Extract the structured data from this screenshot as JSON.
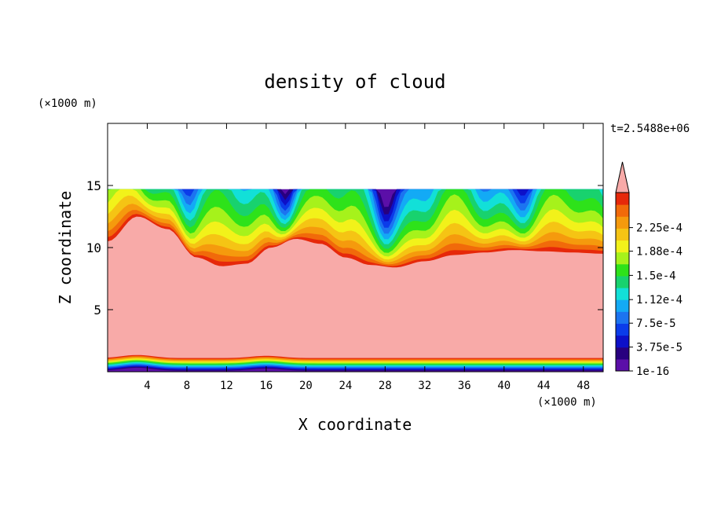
{
  "chart_data": {
    "type": "heatmap",
    "title": "density of cloud",
    "xlabel": "X coordinate",
    "ylabel": "Z coordinate",
    "x_unit_label": "(×1000 m)",
    "y_unit_label": "(×1000 m)",
    "time_label": "t=2.5488e+06",
    "xlim": [
      0,
      50
    ],
    "ylim": [
      0,
      20
    ],
    "x_ticks": [
      4,
      8,
      12,
      16,
      20,
      24,
      28,
      32,
      36,
      40,
      44,
      48
    ],
    "y_ticks": [
      5,
      10,
      15
    ],
    "x_tick_labels": [
      "4",
      "8",
      "12",
      "16",
      "20",
      "24",
      "28",
      "32",
      "36",
      "40",
      "44",
      "48"
    ],
    "y_tick_labels": [
      "5",
      "10",
      "15"
    ],
    "field_top_z": 14.7,
    "cloud_base_z": 1.1,
    "cloud_top_profile": {
      "x": [
        0,
        3,
        6,
        9,
        11.5,
        14,
        16.5,
        19,
        21.5,
        24,
        26.5,
        29,
        32,
        35,
        38,
        41,
        44,
        47,
        50
      ],
      "z": [
        10.5,
        12.5,
        11.5,
        9.2,
        8.5,
        8.7,
        10.0,
        10.7,
        10.3,
        9.2,
        8.6,
        8.4,
        8.9,
        9.4,
        9.6,
        9.8,
        9.7,
        9.6,
        9.5
      ]
    },
    "colorbar": {
      "colors": [
        "#5b0fa8",
        "#28007f",
        "#0d10c8",
        "#0b3cea",
        "#1c74f0",
        "#13aaf5",
        "#12e0d8",
        "#18d26e",
        "#2ee21a",
        "#a6f21b",
        "#f2f21a",
        "#f5c414",
        "#f59a0d",
        "#f16a0a",
        "#e6280a"
      ],
      "over_color": "#f8aaa8",
      "tick_labels": [
        "1e-16",
        "3.75e-5",
        "7.5e-5",
        "1.12e-4",
        "1.5e-4",
        "1.88e-4",
        "2.25e-4"
      ],
      "tick_values": [
        1e-16,
        3.75e-05,
        7.5e-05,
        0.000112,
        0.00015,
        0.000188,
        0.000225
      ],
      "range": [
        1e-16,
        0.00028
      ]
    }
  }
}
